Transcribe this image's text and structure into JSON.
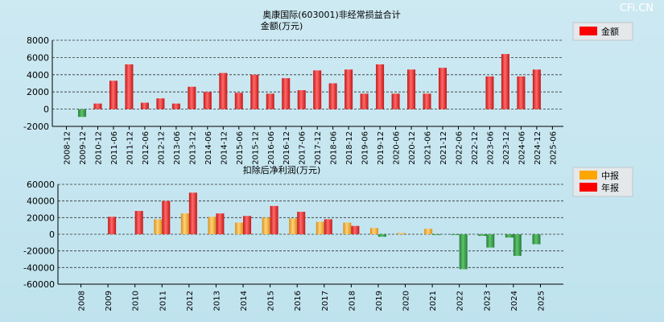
{
  "watermark": "CFi.CN",
  "colors": {
    "annual_bar": "#dd1f1f",
    "loss_bar": "#2e9b3a",
    "interim_bar": "#f0a020",
    "legend_red": "#ff0000",
    "legend_orange": "#ffa500"
  },
  "chart_data": [
    {
      "type": "bar",
      "title": "奥康国际(603001)非经常损益合计",
      "subtitle": "金额(万元)",
      "ylabel": "金额(万元)",
      "ylim": [
        -2000,
        8000
      ],
      "yticks": [
        8000,
        6000,
        4000,
        2000,
        0,
        -2000
      ],
      "grid": true,
      "legend": {
        "placement": "top-right",
        "items": [
          "金额"
        ]
      },
      "categories": [
        "2008-12",
        "2009-12",
        "2010-12",
        "2011-06",
        "2011-12",
        "2012-06",
        "2012-12",
        "2013-06",
        "2013-12",
        "2014-06",
        "2014-12",
        "2015-06",
        "2015-12",
        "2016-06",
        "2016-12",
        "2017-06",
        "2017-12",
        "2018-06",
        "2018-12",
        "2019-06",
        "2019-12",
        "2020-06",
        "2020-12",
        "2021-06",
        "2021-12",
        "2022-06",
        "2022-12",
        "2023-06",
        "2023-12",
        "2024-06",
        "2024-12",
        "2025-06"
      ],
      "values": [
        0,
        -900,
        650,
        3300,
        5200,
        750,
        1250,
        650,
        2600,
        2000,
        4200,
        1900,
        4000,
        1800,
        3600,
        2200,
        4500,
        3000,
        4600,
        1800,
        5200,
        1800,
        4600,
        1800,
        4800,
        0,
        0,
        3800,
        6400,
        3800,
        4600,
        0
      ]
    },
    {
      "type": "bar",
      "title": "扣除后净利润(万元)",
      "ylabel": "扣除后净利润(万元)",
      "ylim": [
        -60000,
        60000
      ],
      "yticks": [
        60000,
        40000,
        20000,
        0,
        -20000,
        -40000,
        -60000
      ],
      "grid": true,
      "legend": {
        "placement": "top-right",
        "items": [
          "中报",
          "年报"
        ]
      },
      "categories": [
        "2008",
        "2009",
        "2010",
        "2011",
        "2012",
        "2013",
        "2014",
        "2015",
        "2016",
        "2017",
        "2018",
        "2019",
        "2020",
        "2021",
        "2022",
        "2023",
        "2024",
        "2025"
      ],
      "series": [
        {
          "name": "中报",
          "values": [
            null,
            null,
            null,
            18000,
            25000,
            21000,
            14000,
            20000,
            19000,
            15000,
            14000,
            7500,
            1500,
            6500,
            -1000,
            -2000,
            -4000,
            -12000
          ]
        },
        {
          "name": "年报",
          "values": [
            null,
            21000,
            28000,
            40000,
            50000,
            25000,
            22000,
            34000,
            27000,
            18000,
            10000,
            -3000,
            0,
            -1000,
            -42000,
            -16000,
            -26000,
            null
          ]
        }
      ]
    }
  ]
}
